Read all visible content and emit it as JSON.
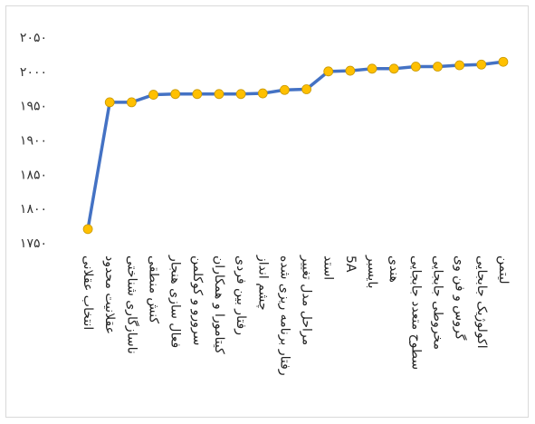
{
  "chart_data": {
    "type": "line",
    "title": "",
    "xlabel": "",
    "ylabel": "",
    "ylim": [
      1750,
      2050
    ],
    "yticks": [
      1750,
      1800,
      1850,
      1900,
      1950,
      2000,
      2050
    ],
    "ytick_labels": [
      "۱۷۵۰",
      "۱۸۰۰",
      "۱۸۵۰",
      "۱۹۰۰",
      "۱۹۵۰",
      "۲۰۰۰",
      "۲۰۵۰"
    ],
    "grid": false,
    "legend": "none",
    "series_color": "#4472C4",
    "marker_color": "#FFC000",
    "categories": [
      "انتخاب عقلانی",
      "عقلانیت محدود",
      "ناسازگاری شناختی",
      "کنش منطقی",
      "فعال سازی هنجار",
      "سرورو و کوکلمن",
      "کیتامورا و همکاران",
      "رفتار بین فردی",
      "چشم انداز",
      "رفتار برنامه ریزی شده",
      "مراحل مدل تغییر",
      "استد",
      "5A",
      "بایسبر",
      "هندی",
      "سطوح متعدد جابجایی",
      "مخروطی جابجایی",
      "گروس و فن وی",
      "اکولوژیک جابجایی",
      "لیتمن"
    ],
    "values": [
      1770,
      1955,
      1955,
      1966,
      1967,
      1967,
      1967,
      1967,
      1968,
      1973,
      1974,
      2000,
      2001,
      2004,
      2004,
      2007,
      2007,
      2009,
      2010,
      2014
    ]
  }
}
